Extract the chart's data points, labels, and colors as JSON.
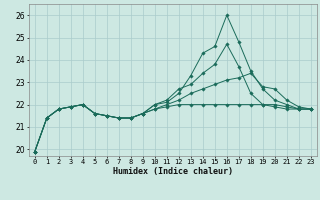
{
  "title": "",
  "xlabel": "Humidex (Indice chaleur)",
  "ylabel": "",
  "xlim": [
    -0.5,
    23.5
  ],
  "ylim": [
    19.7,
    26.5
  ],
  "yticks": [
    20,
    21,
    22,
    23,
    24,
    25,
    26
  ],
  "xticks": [
    0,
    1,
    2,
    3,
    4,
    5,
    6,
    7,
    8,
    9,
    10,
    11,
    12,
    13,
    14,
    15,
    16,
    17,
    18,
    19,
    20,
    21,
    22,
    23
  ],
  "bg_color": "#cde8e2",
  "grid_color": "#aacccc",
  "line_color": "#1a6b5a",
  "series": [
    [
      19.9,
      21.4,
      21.8,
      21.9,
      22.0,
      21.6,
      21.5,
      21.4,
      21.4,
      21.6,
      22.0,
      22.1,
      22.5,
      23.3,
      24.3,
      24.6,
      26.0,
      24.8,
      23.5,
      22.7,
      22.2,
      22.0,
      21.8,
      21.8
    ],
    [
      19.9,
      21.4,
      21.8,
      21.9,
      22.0,
      21.6,
      21.5,
      21.4,
      21.4,
      21.6,
      22.0,
      22.2,
      22.7,
      22.9,
      23.4,
      23.8,
      24.7,
      23.7,
      22.5,
      22.0,
      21.9,
      21.8,
      21.8,
      21.8
    ],
    [
      19.9,
      21.4,
      21.8,
      21.9,
      22.0,
      21.6,
      21.5,
      21.4,
      21.4,
      21.6,
      21.8,
      22.0,
      22.2,
      22.5,
      22.7,
      22.9,
      23.1,
      23.2,
      23.4,
      22.8,
      22.7,
      22.2,
      21.9,
      21.8
    ],
    [
      19.9,
      21.4,
      21.8,
      21.9,
      22.0,
      21.6,
      21.5,
      21.4,
      21.4,
      21.6,
      21.8,
      21.9,
      22.0,
      22.0,
      22.0,
      22.0,
      22.0,
      22.0,
      22.0,
      22.0,
      22.0,
      21.9,
      21.8,
      21.8
    ]
  ],
  "xlabel_fontsize": 6.0,
  "tick_fontsize": 5.0
}
